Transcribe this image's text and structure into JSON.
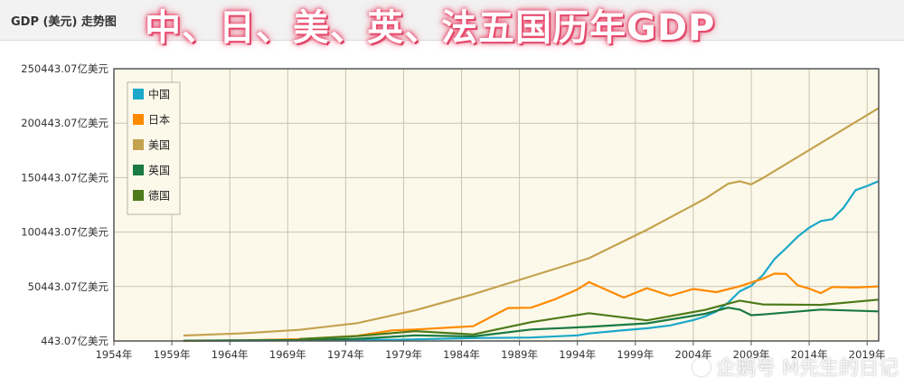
{
  "header": {
    "panel_title": "GDP (美元) 走势图",
    "overlay_title": "中、日、美、英、法五国历年GDP",
    "watermark": "企鹅号 M先生的日记"
  },
  "colors": {
    "plot_bg": "#fdf9ea",
    "grid": "#c9c3b0",
    "axis": "#555555"
  },
  "chart_data": {
    "type": "line",
    "xlabel": "",
    "ylabel": "",
    "xlim": [
      1954,
      2020
    ],
    "ylim": [
      443.07,
      250443.07
    ],
    "yticks": [
      443.07,
      50443.07,
      100443.07,
      150443.07,
      200443.07,
      250443.07
    ],
    "ytick_labels": [
      "443.07亿美元",
      "50443.07亿美元",
      "100443.07亿美元",
      "150443.07亿美元",
      "200443.07亿美元",
      "250443.07亿美元"
    ],
    "xticks": [
      1954,
      1959,
      1964,
      1969,
      1974,
      1979,
      1984,
      1989,
      1994,
      1999,
      2004,
      2009,
      2014,
      2019
    ],
    "xtick_labels": [
      "1954年",
      "1959年",
      "1964年",
      "1969年",
      "1974年",
      "1979年",
      "1984年",
      "1989年",
      "1994年",
      "1999年",
      "2004年",
      "2009年",
      "2014年",
      "2019年"
    ],
    "grid": true,
    "legend": "top-left",
    "series": [
      {
        "name": "中国",
        "color": "#1ba8c9",
        "x": [
          1960,
          1965,
          1970,
          1975,
          1978,
          1980,
          1985,
          1990,
          1994,
          1995,
          1998,
          2000,
          2002,
          2004,
          2005,
          2006,
          2007,
          2008,
          2009,
          2010,
          2011,
          2012,
          2013,
          2014,
          2015,
          2016,
          2017,
          2018,
          2019,
          2020
        ],
        "y": [
          600,
          700,
          900,
          1600,
          1500,
          1900,
          3100,
          3600,
          5600,
          7300,
          10300,
          12100,
          14700,
          19600,
          22900,
          27500,
          35500,
          46000,
          51100,
          60900,
          75500,
          85600,
          96100,
          104400,
          110600,
          112300,
          123100,
          138900,
          142800,
          147200
        ]
      },
      {
        "name": "日本",
        "color": "#ff8a00",
        "x": [
          1960,
          1965,
          1970,
          1975,
          1978,
          1980,
          1985,
          1988,
          1990,
          1992,
          1994,
          1995,
          1998,
          2000,
          2002,
          2004,
          2006,
          2008,
          2010,
          2011,
          2012,
          2013,
          2014,
          2015,
          2016,
          2018,
          2020
        ],
        "y": [
          440,
          900,
          2100,
          5200,
          10200,
          11000,
          14000,
          30700,
          31000,
          38500,
          47800,
          54500,
          40300,
          48900,
          42000,
          48200,
          45300,
          50600,
          57600,
          62300,
          62000,
          51600,
          48500,
          44400,
          50000,
          49500,
          50600
        ]
      },
      {
        "name": "美国",
        "color": "#c4a24f",
        "x": [
          1960,
          1965,
          1970,
          1975,
          1980,
          1985,
          1990,
          1995,
          2000,
          2005,
          2007,
          2008,
          2009,
          2010,
          2015,
          2020
        ],
        "y": [
          5400,
          7400,
          10700,
          16800,
          28600,
          43400,
          59800,
          76400,
          102500,
          130900,
          144800,
          147100,
          144200,
          150000,
          182200,
          214300
        ]
      },
      {
        "name": "英国",
        "color": "#1a7a42",
        "x": [
          1960,
          1965,
          1970,
          1975,
          1980,
          1985,
          1990,
          1995,
          2000,
          2005,
          2007,
          2008,
          2009,
          2010,
          2015,
          2020
        ],
        "y": [
          730,
          1000,
          1300,
          2400,
          5600,
          4600,
          11000,
          13400,
          16600,
          25400,
          31000,
          29300,
          24100,
          24800,
          29300,
          27600
        ]
      },
      {
        "name": "德国",
        "color": "#4d7a1a",
        "x": [
          1970,
          1975,
          1980,
          1985,
          1990,
          1995,
          2000,
          2005,
          2008,
          2010,
          2015,
          2020
        ],
        "y": [
          2200,
          4900,
          9500,
          6400,
          17700,
          25900,
          19400,
          28900,
          37500,
          34000,
          33600,
          38400
        ]
      }
    ]
  }
}
